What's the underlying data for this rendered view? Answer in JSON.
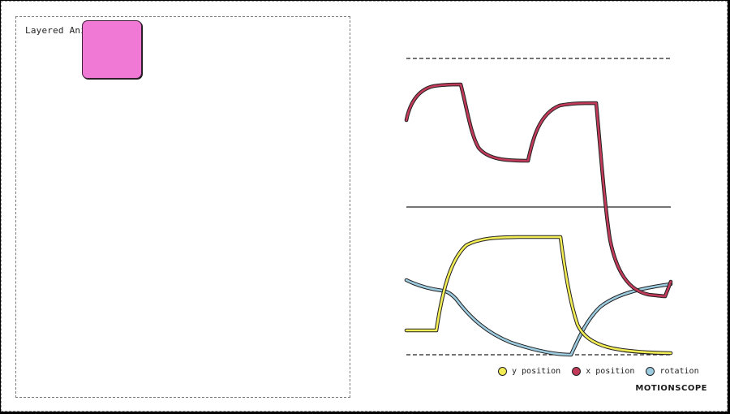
{
  "stage": {
    "title": "Layered Animation"
  },
  "colors": {
    "box": "#ef79d5",
    "y_position": "#f2ec55",
    "x_position": "#c23a5a",
    "rotation": "#9ccbdf"
  },
  "legend": {
    "items": [
      {
        "label": "y position",
        "color": "#f2ec55"
      },
      {
        "label": "x position",
        "color": "#c23a5a"
      },
      {
        "label": "rotation",
        "color": "#9ccbdf"
      }
    ]
  },
  "brand": "MOTIONSCOPE",
  "chart_data": {
    "type": "line",
    "title": "",
    "xlabel": "",
    "ylabel": "",
    "ylim": [
      0,
      1
    ],
    "x": [
      0,
      0.1,
      0.2,
      0.3,
      0.4,
      0.5,
      0.6,
      0.7,
      0.8,
      0.9,
      1.0
    ],
    "series": [
      {
        "name": "x position",
        "color": "#c23a5a",
        "values": [
          0.81,
          0.91,
          0.91,
          0.73,
          0.71,
          0.88,
          0.85,
          0.25,
          0.22,
          0.21,
          0.24
        ]
      },
      {
        "name": "y position",
        "color": "#f2ec55",
        "values": [
          0.07,
          0.4,
          0.4,
          0.4,
          0.4,
          0.15,
          0.01,
          0.01,
          0.0,
          0.0,
          0.0
        ]
      },
      {
        "name": "rotation",
        "color": "#9ccbdf",
        "values": [
          0.26,
          0.22,
          0.1,
          0.04,
          0.02,
          0.0,
          0.12,
          0.2,
          0.23,
          0.24,
          0.24
        ]
      }
    ]
  }
}
